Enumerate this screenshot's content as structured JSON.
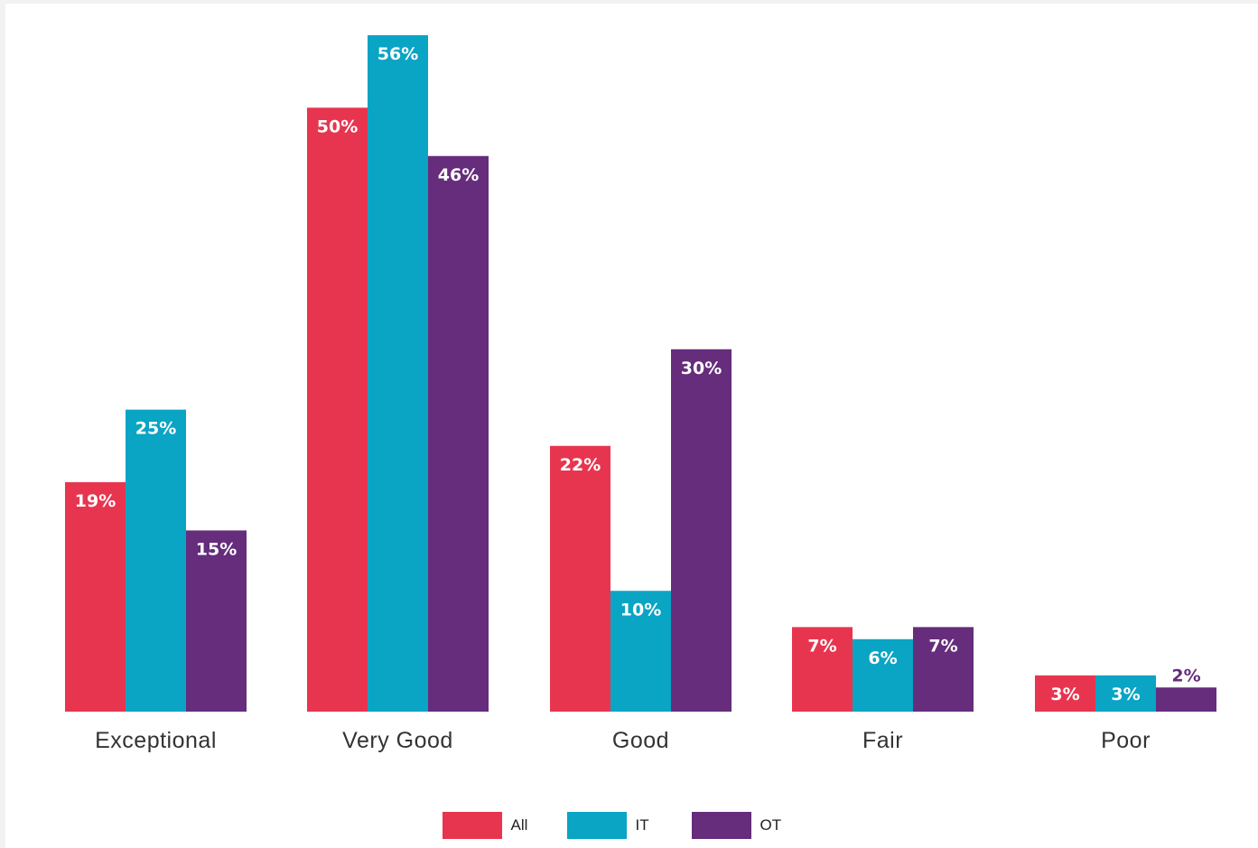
{
  "chart_data": {
    "type": "bar",
    "categories": [
      "Exceptional",
      "Very Good",
      "Good",
      "Fair",
      "Poor"
    ],
    "series": [
      {
        "name": "All",
        "color": "#e8354f",
        "values": [
          19,
          50,
          22,
          7,
          3
        ],
        "labels": [
          "19%",
          "50%",
          "22%",
          "7%",
          "3%"
        ]
      },
      {
        "name": "IT",
        "color": "#0aa4c4",
        "values": [
          25,
          56,
          10,
          6,
          3
        ],
        "labels": [
          "25%",
          "56%",
          "10%",
          "6%",
          "3%"
        ]
      },
      {
        "name": "OT",
        "color": "#652d7b",
        "values": [
          15,
          46,
          30,
          7,
          2
        ],
        "labels": [
          "15%",
          "46%",
          "30%",
          "7%",
          "2%"
        ]
      }
    ],
    "ylim": [
      0,
      56
    ],
    "grid": false,
    "legend_position": "bottom-center",
    "title": "",
    "xlabel": "",
    "ylabel": ""
  }
}
